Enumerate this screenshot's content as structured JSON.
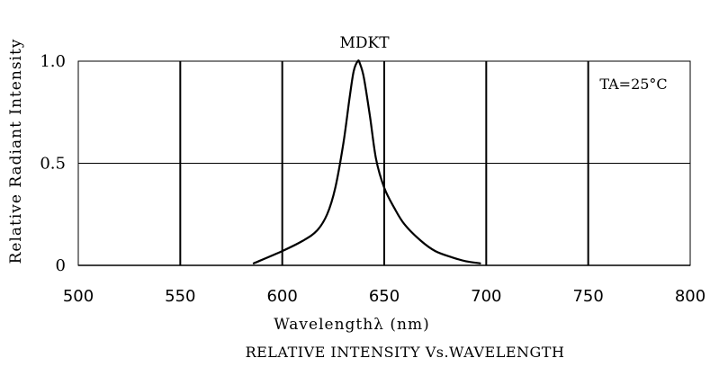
{
  "chart_data": {
    "type": "line",
    "title": "MDKT",
    "subtitle": "RELATIVE INTENSITY Vs.WAVELENGTH",
    "xlabel": "Wavelengthλ (nm)",
    "ylabel": "Relative Radiant Intensity",
    "annotation": "TA=25°C",
    "xlim": [
      500,
      800
    ],
    "ylim": [
      0,
      1.0
    ],
    "x_ticks": [
      500,
      550,
      600,
      650,
      700,
      750,
      800
    ],
    "x_tick_labels": [
      "500",
      "550",
      "600",
      "650",
      "700",
      "750",
      "800"
    ],
    "y_ticks": [
      0,
      0.5,
      1.0
    ],
    "y_tick_labels": [
      "0",
      "0.5",
      "1.0"
    ],
    "grid": true,
    "series": [
      {
        "x": [
          586,
          600,
          610,
          617,
          622,
          626,
          630,
          633,
          635,
          637,
          638,
          640,
          643,
          646,
          650,
          655,
          660,
          668,
          675,
          683,
          690,
          697
        ],
        "y": [
          0.01,
          0.07,
          0.12,
          0.17,
          0.25,
          0.38,
          0.6,
          0.82,
          0.95,
          1.0,
          0.99,
          0.92,
          0.73,
          0.52,
          0.38,
          0.28,
          0.2,
          0.12,
          0.07,
          0.04,
          0.02,
          0.01
        ]
      }
    ]
  }
}
